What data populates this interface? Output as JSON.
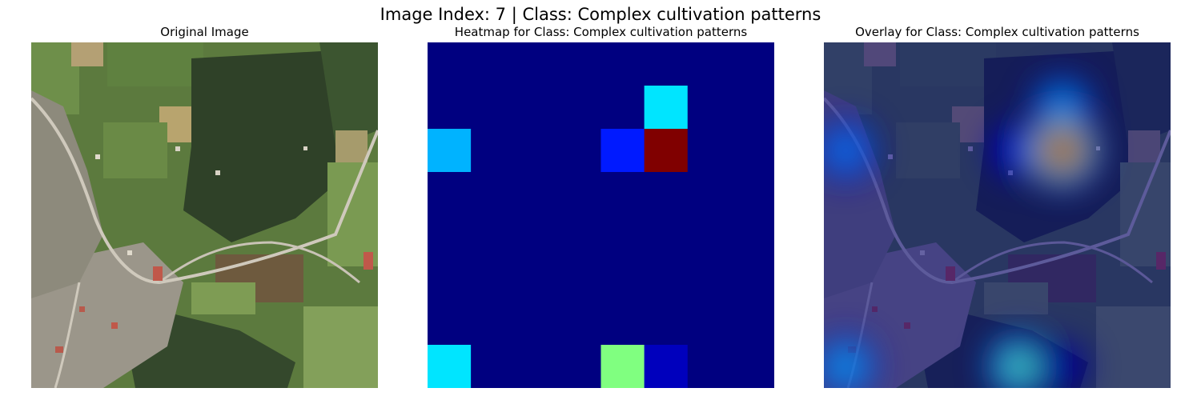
{
  "figure": {
    "suptitle": "Image Index: 7 | Class: Complex cultivation patterns"
  },
  "panels": [
    {
      "title": "Original Image"
    },
    {
      "title": "Heatmap for Class: Complex cultivation patterns"
    },
    {
      "title": "Overlay for Class: Complex cultivation patterns"
    }
  ],
  "chart_data": {
    "type": "heatmap",
    "colormap": "jet",
    "rows": 8,
    "cols": 8,
    "values": [
      [
        0,
        0,
        0,
        0,
        0,
        0,
        0,
        0
      ],
      [
        0,
        0,
        0,
        0,
        0,
        0.35,
        0,
        0
      ],
      [
        0.3,
        0,
        0,
        0,
        0.15,
        1.0,
        0,
        0
      ],
      [
        0,
        0,
        0,
        0,
        0,
        0,
        0,
        0
      ],
      [
        0,
        0,
        0,
        0,
        0,
        0,
        0,
        0
      ],
      [
        0,
        0,
        0,
        0,
        0,
        0,
        0,
        0
      ],
      [
        0,
        0,
        0,
        0,
        0,
        0,
        0,
        0
      ],
      [
        0.35,
        0,
        0,
        0,
        0.5,
        0.06,
        0,
        0
      ]
    ]
  },
  "colors": {
    "background": "#ffffff",
    "grass_light": "#6b8a48",
    "forest_dark": "#2a3a22",
    "village": "#a9a49a",
    "roof_red": "#c0584a"
  }
}
